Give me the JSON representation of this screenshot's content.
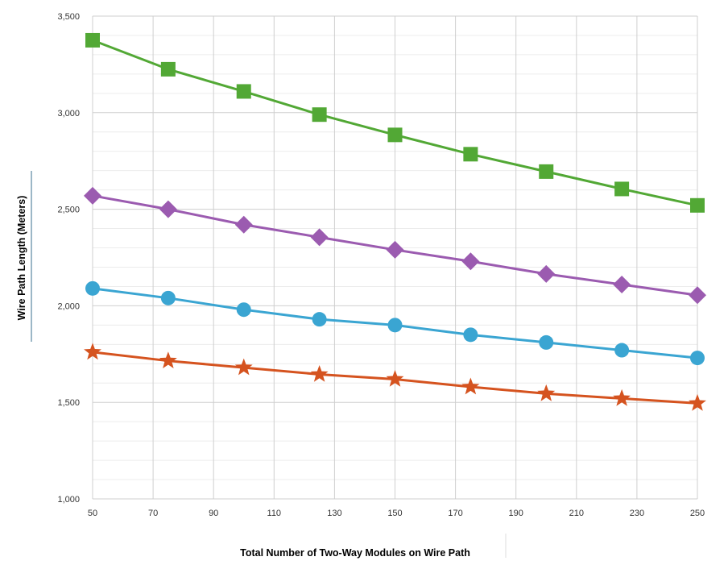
{
  "colors": {
    "series_green": "#52a835",
    "series_purple": "#9b5bb0",
    "series_blue": "#3aa5d2",
    "series_orange": "#d5531f",
    "axis_title": "#2f7faa",
    "grid_major": "#cfcfcf",
    "grid_minor": "#ececec"
  },
  "chart_data": {
    "type": "line",
    "title": "",
    "xlabel": "Total Number of Two-Way Modules on Wire Path",
    "ylabel": "Wire Path Length (Meters)",
    "xlim": [
      50,
      250
    ],
    "ylim": [
      1000,
      3500
    ],
    "x_ticks": [
      50,
      70,
      90,
      110,
      130,
      150,
      170,
      190,
      210,
      230,
      250
    ],
    "x_tick_labels": [
      "50",
      "70",
      "90",
      "110",
      "130",
      "150",
      "170",
      "190",
      "210",
      "230",
      "250"
    ],
    "y_ticks": [
      1000,
      1500,
      2000,
      2500,
      3000,
      3500
    ],
    "y_tick_labels": [
      "1,000",
      "1,500",
      "2,000",
      "2,500",
      "3,000",
      "3,500"
    ],
    "grid": true,
    "x": [
      50,
      75,
      100,
      125,
      150,
      175,
      200,
      225,
      250
    ],
    "series": [
      {
        "name": "square",
        "marker": "square",
        "color": "#52a835",
        "values": [
          3375,
          3225,
          3110,
          2990,
          2885,
          2785,
          2695,
          2605,
          2520
        ]
      },
      {
        "name": "diamond",
        "marker": "diamond",
        "color": "#9b5bb0",
        "values": [
          2570,
          2500,
          2420,
          2355,
          2290,
          2230,
          2165,
          2110,
          2055
        ]
      },
      {
        "name": "circle",
        "marker": "circle",
        "color": "#3aa5d2",
        "values": [
          2090,
          2040,
          1980,
          1930,
          1900,
          1850,
          1810,
          1770,
          1730
        ]
      },
      {
        "name": "star",
        "marker": "star",
        "color": "#d5531f",
        "values": [
          1760,
          1715,
          1680,
          1645,
          1620,
          1580,
          1545,
          1520,
          1495
        ]
      }
    ]
  }
}
